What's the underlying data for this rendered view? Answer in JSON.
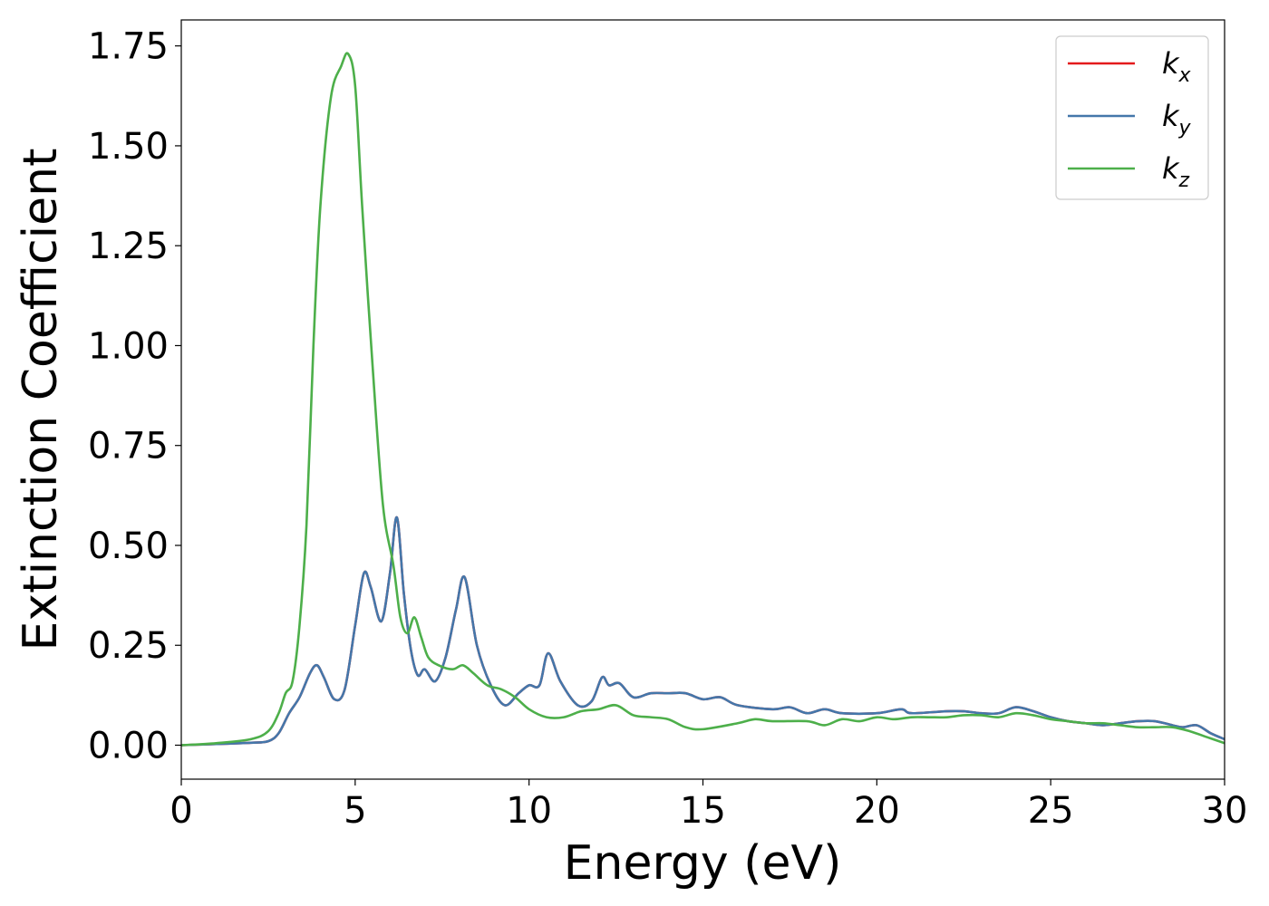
{
  "chart_data": {
    "type": "line",
    "xlabel": "Energy (eV)",
    "ylabel": "Extinction Coefficient",
    "xlim": [
      0,
      30
    ],
    "ylim": [
      -0.085,
      1.815
    ],
    "xticks": [
      0,
      5,
      10,
      15,
      20,
      25,
      30
    ],
    "xtick_labels": [
      "0",
      "5",
      "10",
      "15",
      "20",
      "25",
      "30"
    ],
    "yticks": [
      0.0,
      0.25,
      0.5,
      0.75,
      1.0,
      1.25,
      1.5,
      1.75
    ],
    "ytick_labels": [
      "0.00",
      "0.25",
      "0.50",
      "0.75",
      "1.00",
      "1.25",
      "1.50",
      "1.75"
    ],
    "grid": false,
    "legend": "top-right",
    "series": [
      {
        "name": "k_x",
        "label_base": "k",
        "label_sub": "x",
        "color": "#e41a1c",
        "x": [
          0,
          1,
          2,
          2.5,
          2.8,
          3.1,
          3.4,
          3.7,
          3.9,
          4.1,
          4.4,
          4.7,
          5.0,
          5.25,
          5.45,
          5.75,
          6.0,
          6.2,
          6.4,
          6.6,
          6.8,
          7.0,
          7.3,
          7.6,
          7.9,
          8.15,
          8.5,
          8.9,
          9.3,
          9.7,
          10.0,
          10.3,
          10.55,
          10.9,
          11.4,
          11.8,
          12.1,
          12.3,
          12.6,
          13.0,
          13.5,
          14.0,
          14.5,
          15.0,
          15.5,
          16.0,
          17.0,
          17.5,
          18.0,
          18.5,
          19.0,
          20.0,
          20.7,
          21.0,
          22.0,
          22.5,
          23.0,
          23.5,
          24.0,
          24.5,
          25.0,
          25.5,
          26.0,
          26.5,
          27.0,
          27.5,
          28.0,
          28.5,
          28.8,
          29.2,
          29.6,
          30.0
        ],
        "y": [
          0.0,
          0.003,
          0.006,
          0.01,
          0.03,
          0.08,
          0.12,
          0.18,
          0.2,
          0.17,
          0.115,
          0.14,
          0.3,
          0.43,
          0.395,
          0.31,
          0.43,
          0.57,
          0.38,
          0.24,
          0.175,
          0.19,
          0.16,
          0.22,
          0.34,
          0.42,
          0.25,
          0.15,
          0.1,
          0.13,
          0.15,
          0.15,
          0.23,
          0.16,
          0.1,
          0.11,
          0.17,
          0.15,
          0.155,
          0.12,
          0.13,
          0.13,
          0.13,
          0.115,
          0.12,
          0.1,
          0.09,
          0.095,
          0.08,
          0.09,
          0.08,
          0.08,
          0.09,
          0.08,
          0.085,
          0.085,
          0.08,
          0.08,
          0.095,
          0.085,
          0.07,
          0.06,
          0.055,
          0.05,
          0.055,
          0.06,
          0.06,
          0.05,
          0.045,
          0.05,
          0.03,
          0.015
        ]
      },
      {
        "name": "k_y",
        "label_base": "k",
        "label_sub": "y",
        "color": "#4477aa",
        "x": [
          0,
          1,
          2,
          2.5,
          2.8,
          3.1,
          3.4,
          3.7,
          3.9,
          4.1,
          4.4,
          4.7,
          5.0,
          5.25,
          5.45,
          5.75,
          6.0,
          6.2,
          6.4,
          6.6,
          6.8,
          7.0,
          7.3,
          7.6,
          7.9,
          8.15,
          8.5,
          8.9,
          9.3,
          9.7,
          10.0,
          10.3,
          10.55,
          10.9,
          11.4,
          11.8,
          12.1,
          12.3,
          12.6,
          13.0,
          13.5,
          14.0,
          14.5,
          15.0,
          15.5,
          16.0,
          17.0,
          17.5,
          18.0,
          18.5,
          19.0,
          20.0,
          20.7,
          21.0,
          22.0,
          22.5,
          23.0,
          23.5,
          24.0,
          24.5,
          25.0,
          25.5,
          26.0,
          26.5,
          27.0,
          27.5,
          28.0,
          28.5,
          28.8,
          29.2,
          29.6,
          30.0
        ],
        "y": [
          0.0,
          0.003,
          0.006,
          0.01,
          0.03,
          0.08,
          0.12,
          0.18,
          0.2,
          0.17,
          0.115,
          0.14,
          0.3,
          0.43,
          0.395,
          0.31,
          0.43,
          0.57,
          0.38,
          0.24,
          0.175,
          0.19,
          0.16,
          0.22,
          0.34,
          0.42,
          0.25,
          0.15,
          0.1,
          0.13,
          0.15,
          0.15,
          0.23,
          0.16,
          0.1,
          0.11,
          0.17,
          0.15,
          0.155,
          0.12,
          0.13,
          0.13,
          0.13,
          0.115,
          0.12,
          0.1,
          0.09,
          0.095,
          0.08,
          0.09,
          0.08,
          0.08,
          0.09,
          0.08,
          0.085,
          0.085,
          0.08,
          0.08,
          0.095,
          0.085,
          0.07,
          0.06,
          0.055,
          0.05,
          0.055,
          0.06,
          0.06,
          0.05,
          0.045,
          0.05,
          0.03,
          0.015
        ]
      },
      {
        "name": "k_z",
        "label_base": "k",
        "label_sub": "z",
        "color": "#4daf4a",
        "x": [
          0,
          1,
          2,
          2.5,
          2.8,
          3.0,
          3.2,
          3.4,
          3.6,
          3.8,
          4.0,
          4.3,
          4.6,
          4.8,
          5.0,
          5.2,
          5.5,
          5.8,
          6.1,
          6.3,
          6.5,
          6.7,
          6.9,
          7.1,
          7.4,
          7.8,
          8.1,
          8.4,
          8.8,
          9.2,
          9.6,
          10.0,
          10.5,
          11.0,
          11.5,
          12.0,
          12.5,
          13.0,
          13.5,
          14.0,
          14.5,
          15.0,
          16.0,
          16.5,
          17.0,
          18.0,
          18.5,
          19.0,
          19.5,
          20.0,
          20.5,
          21.0,
          21.5,
          22.0,
          22.5,
          23.0,
          23.5,
          24.0,
          24.5,
          25.0,
          25.5,
          26.0,
          26.5,
          27.0,
          27.5,
          28.0,
          28.5,
          29.0,
          29.5,
          30.0
        ],
        "y": [
          0.0,
          0.005,
          0.015,
          0.035,
          0.08,
          0.13,
          0.16,
          0.3,
          0.55,
          1.0,
          1.35,
          1.62,
          1.7,
          1.73,
          1.65,
          1.35,
          0.95,
          0.6,
          0.45,
          0.32,
          0.28,
          0.32,
          0.27,
          0.22,
          0.2,
          0.19,
          0.2,
          0.18,
          0.15,
          0.14,
          0.12,
          0.09,
          0.07,
          0.07,
          0.085,
          0.09,
          0.1,
          0.075,
          0.07,
          0.065,
          0.045,
          0.04,
          0.055,
          0.065,
          0.06,
          0.06,
          0.05,
          0.065,
          0.06,
          0.07,
          0.065,
          0.07,
          0.07,
          0.07,
          0.075,
          0.075,
          0.07,
          0.08,
          0.075,
          0.065,
          0.06,
          0.055,
          0.055,
          0.05,
          0.045,
          0.045,
          0.045,
          0.035,
          0.02,
          0.005
        ]
      }
    ]
  }
}
